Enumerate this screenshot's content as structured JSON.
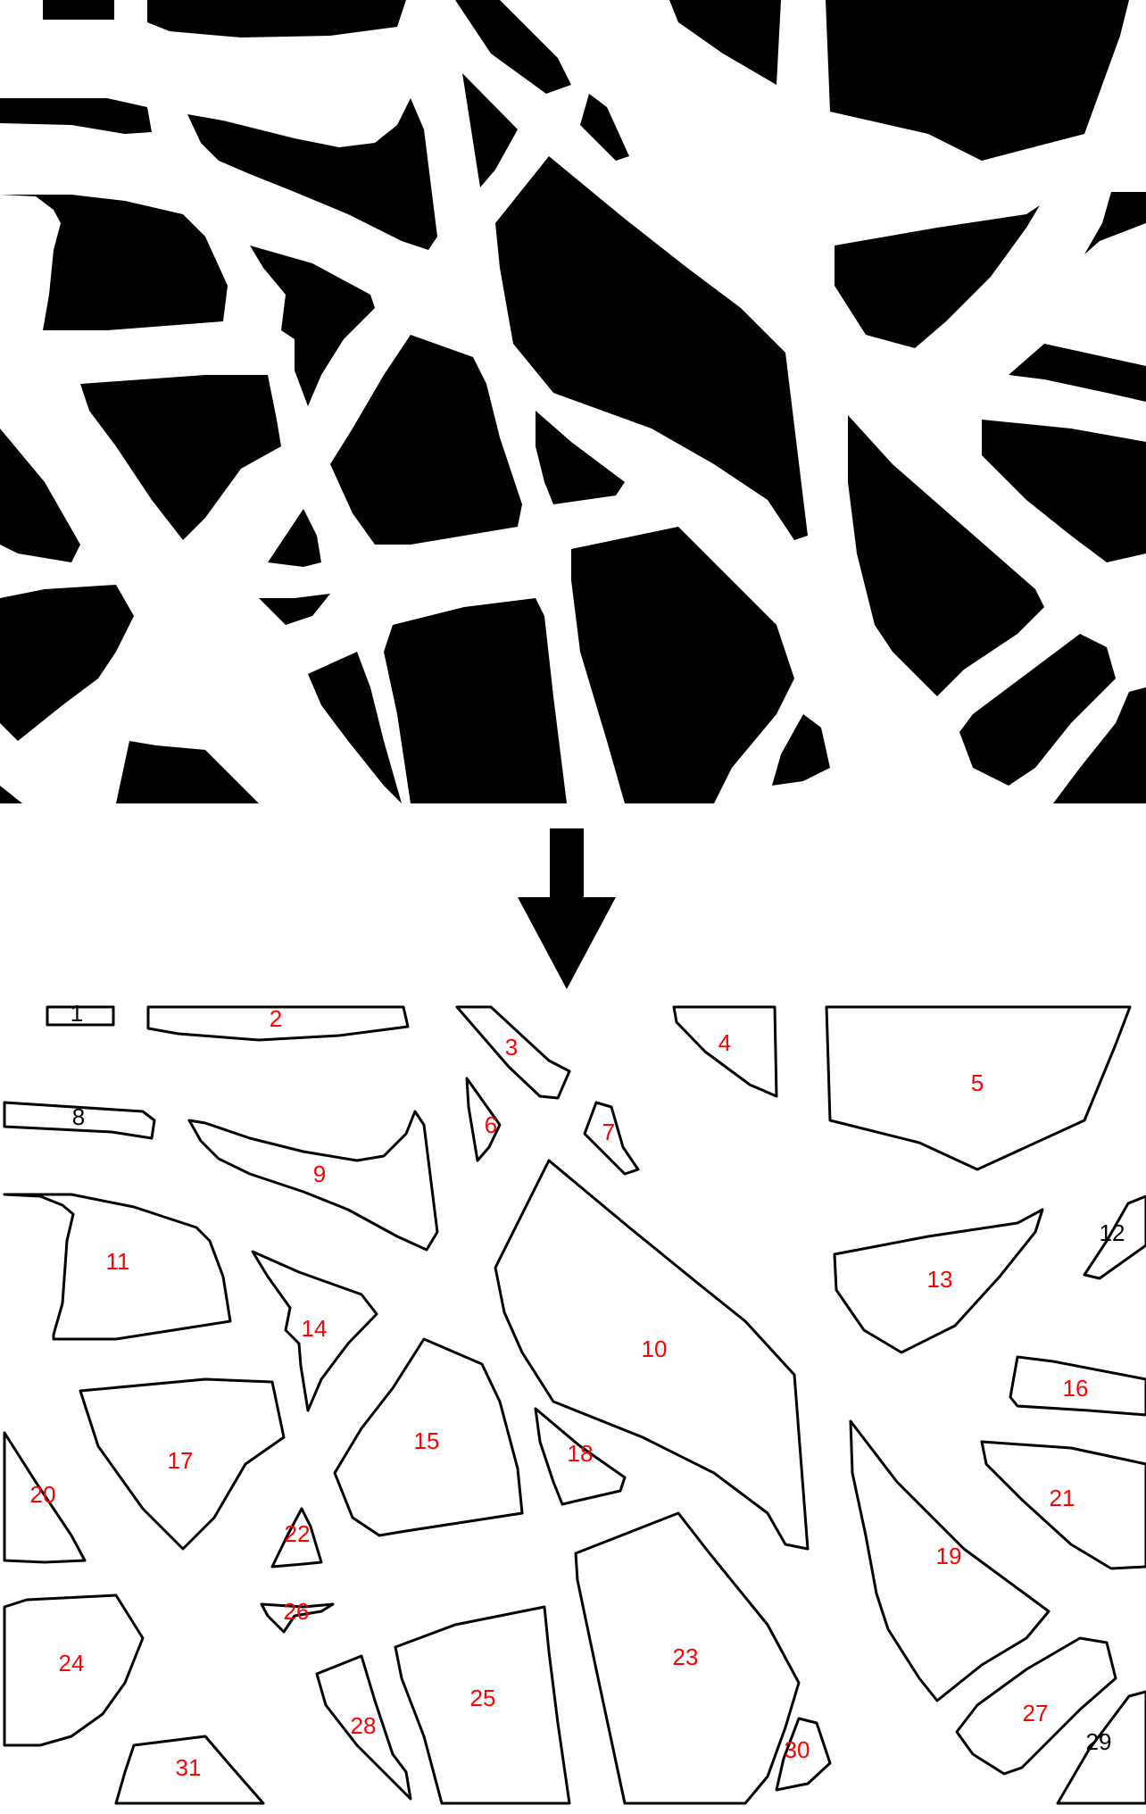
{
  "top_panel": {
    "description_kind": "binary-blob-image",
    "foreground_color": "#000000",
    "background_color": "#ffffff"
  },
  "arrow": {
    "icon": "arrow-down-icon",
    "color": "#000000"
  },
  "bottom_panel": {
    "outline_color": "#000000",
    "label_color_default": "#ff0000",
    "label_color_edge": "#000000",
    "regions": [
      {
        "id": "1",
        "label": "1",
        "edge": true
      },
      {
        "id": "2",
        "label": "2",
        "edge": false
      },
      {
        "id": "3",
        "label": "3",
        "edge": false
      },
      {
        "id": "4",
        "label": "4",
        "edge": false
      },
      {
        "id": "5",
        "label": "5",
        "edge": false
      },
      {
        "id": "6",
        "label": "6",
        "edge": false
      },
      {
        "id": "7",
        "label": "7",
        "edge": false
      },
      {
        "id": "8",
        "label": "8",
        "edge": true
      },
      {
        "id": "9",
        "label": "9",
        "edge": false
      },
      {
        "id": "10",
        "label": "10",
        "edge": false
      },
      {
        "id": "11",
        "label": "11",
        "edge": false
      },
      {
        "id": "12",
        "label": "12",
        "edge": true
      },
      {
        "id": "13",
        "label": "13",
        "edge": false
      },
      {
        "id": "14",
        "label": "14",
        "edge": false
      },
      {
        "id": "15",
        "label": "15",
        "edge": false
      },
      {
        "id": "16",
        "label": "16",
        "edge": false
      },
      {
        "id": "17",
        "label": "17",
        "edge": false
      },
      {
        "id": "18",
        "label": "18",
        "edge": false
      },
      {
        "id": "19",
        "label": "19",
        "edge": false
      },
      {
        "id": "20",
        "label": "20",
        "edge": false
      },
      {
        "id": "21",
        "label": "21",
        "edge": false
      },
      {
        "id": "22",
        "label": "22",
        "edge": false
      },
      {
        "id": "23",
        "label": "23",
        "edge": false
      },
      {
        "id": "24",
        "label": "24",
        "edge": false
      },
      {
        "id": "25",
        "label": "25",
        "edge": false
      },
      {
        "id": "26",
        "label": "26",
        "edge": false
      },
      {
        "id": "27",
        "label": "27",
        "edge": false
      },
      {
        "id": "28",
        "label": "28",
        "edge": false
      },
      {
        "id": "29",
        "label": "29",
        "edge": true
      },
      {
        "id": "30",
        "label": "30",
        "edge": false
      },
      {
        "id": "31",
        "label": "31",
        "edge": false
      }
    ]
  }
}
